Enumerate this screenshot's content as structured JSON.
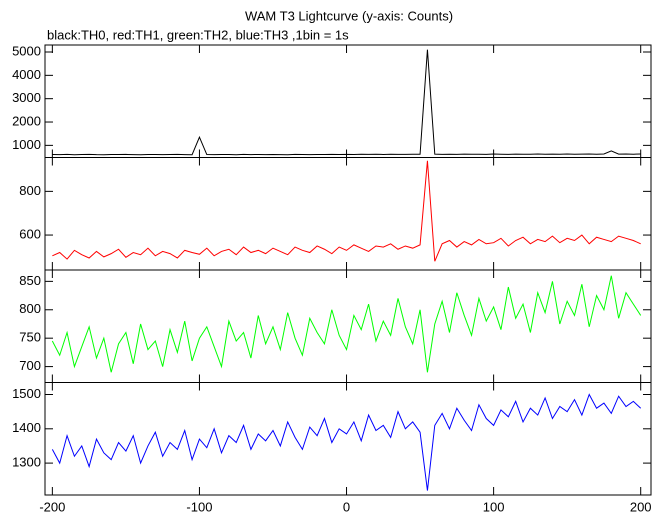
{
  "chart_data": {
    "type": "line",
    "title": "WAM T3 Lightcurve (y-axis: Counts)",
    "subtitle": "black:TH0, red:TH1, green:TH2, blue:TH3 ,1bin = 1s",
    "x": [
      -200,
      -195,
      -190,
      -185,
      -180,
      -175,
      -170,
      -165,
      -160,
      -155,
      -150,
      -145,
      -140,
      -135,
      -130,
      -125,
      -120,
      -115,
      -110,
      -105,
      -100,
      -95,
      -90,
      -85,
      -80,
      -75,
      -70,
      -65,
      -60,
      -55,
      -50,
      -45,
      -40,
      -35,
      -30,
      -25,
      -20,
      -15,
      -10,
      -5,
      0,
      5,
      10,
      15,
      20,
      25,
      30,
      35,
      40,
      45,
      50,
      55,
      60,
      65,
      70,
      75,
      80,
      85,
      90,
      95,
      100,
      105,
      110,
      115,
      120,
      125,
      130,
      135,
      140,
      145,
      150,
      155,
      160,
      165,
      170,
      175,
      180,
      185,
      190,
      195,
      200
    ],
    "xlim": [
      -205,
      207
    ],
    "xticks": [
      -200,
      -100,
      0,
      100,
      200
    ],
    "series": [
      {
        "color": "#000000",
        "ylim": [
          480,
          5300
        ],
        "yticks": [
          1000,
          2000,
          3000,
          4000,
          5000
        ],
        "values": [
          610,
          605,
          612,
          600,
          608,
          615,
          602,
          598,
          610,
          606,
          612,
          604,
          600,
          609,
          611,
          603,
          607,
          612,
          605,
          600,
          1350,
          608,
          602,
          611,
          606,
          600,
          612,
          604,
          609,
          603,
          610,
          605,
          600,
          612,
          607,
          603,
          610,
          606,
          612,
          608,
          615,
          610,
          620,
          612,
          618,
          610,
          622,
          615,
          612,
          620,
          618,
          5100,
          625,
          615,
          620,
          612,
          625,
          618,
          622,
          615,
          628,
          620,
          615,
          625,
          618,
          622,
          630,
          620,
          625,
          618,
          628,
          622,
          625,
          630,
          620,
          632,
          760,
          625,
          630,
          622,
          628
        ]
      },
      {
        "color": "#ff0000",
        "ylim": [
          440,
          955
        ],
        "yticks": [
          600,
          800
        ],
        "values": [
          505,
          520,
          490,
          530,
          510,
          495,
          525,
          500,
          515,
          535,
          498,
          520,
          510,
          540,
          505,
          525,
          515,
          495,
          530,
          520,
          512,
          540,
          505,
          525,
          535,
          510,
          545,
          520,
          530,
          515,
          540,
          525,
          510,
          545,
          530,
          520,
          550,
          535,
          515,
          545,
          530,
          555,
          540,
          525,
          550,
          545,
          560,
          535,
          550,
          540,
          555,
          940,
          480,
          560,
          575,
          545,
          570,
          555,
          580,
          560,
          565,
          585,
          550,
          575,
          590,
          560,
          580,
          570,
          595,
          565,
          585,
          575,
          600,
          560,
          590,
          580,
          570,
          595,
          585,
          575,
          560
        ]
      },
      {
        "color": "#00ff00",
        "ylim": [
          672,
          870
        ],
        "yticks": [
          700,
          750,
          800,
          850
        ],
        "values": [
          745,
          720,
          760,
          700,
          735,
          770,
          715,
          750,
          690,
          740,
          760,
          705,
          775,
          730,
          745,
          700,
          765,
          725,
          780,
          710,
          750,
          770,
          735,
          700,
          780,
          745,
          760,
          715,
          790,
          740,
          770,
          730,
          795,
          750,
          720,
          785,
          760,
          740,
          800,
          755,
          730,
          790,
          765,
          810,
          745,
          780,
          755,
          820,
          770,
          740,
          800,
          690,
          775,
          815,
          760,
          830,
          790,
          755,
          820,
          780,
          805,
          765,
          840,
          785,
          810,
          760,
          830,
          795,
          850,
          775,
          815,
          790,
          845,
          770,
          825,
          800,
          860,
          785,
          830,
          810,
          790
        ]
      },
      {
        "color": "#0000ff",
        "ylim": [
          1207,
          1535
        ],
        "yticks": [
          1300,
          1400,
          1500
        ],
        "values": [
          1340,
          1300,
          1380,
          1320,
          1350,
          1290,
          1370,
          1330,
          1310,
          1360,
          1335,
          1380,
          1300,
          1350,
          1390,
          1320,
          1360,
          1340,
          1395,
          1310,
          1370,
          1345,
          1400,
          1330,
          1380,
          1360,
          1410,
          1340,
          1385,
          1365,
          1395,
          1350,
          1420,
          1375,
          1340,
          1405,
          1380,
          1430,
          1360,
          1400,
          1385,
          1420,
          1365,
          1440,
          1395,
          1410,
          1375,
          1450,
          1400,
          1420,
          1390,
          1220,
          1410,
          1445,
          1400,
          1460,
          1425,
          1395,
          1470,
          1430,
          1410,
          1455,
          1435,
          1480,
          1420,
          1460,
          1440,
          1490,
          1430,
          1465,
          1450,
          1485,
          1440,
          1500,
          1460,
          1475,
          1445,
          1495,
          1465,
          1480,
          1460
        ]
      }
    ]
  }
}
